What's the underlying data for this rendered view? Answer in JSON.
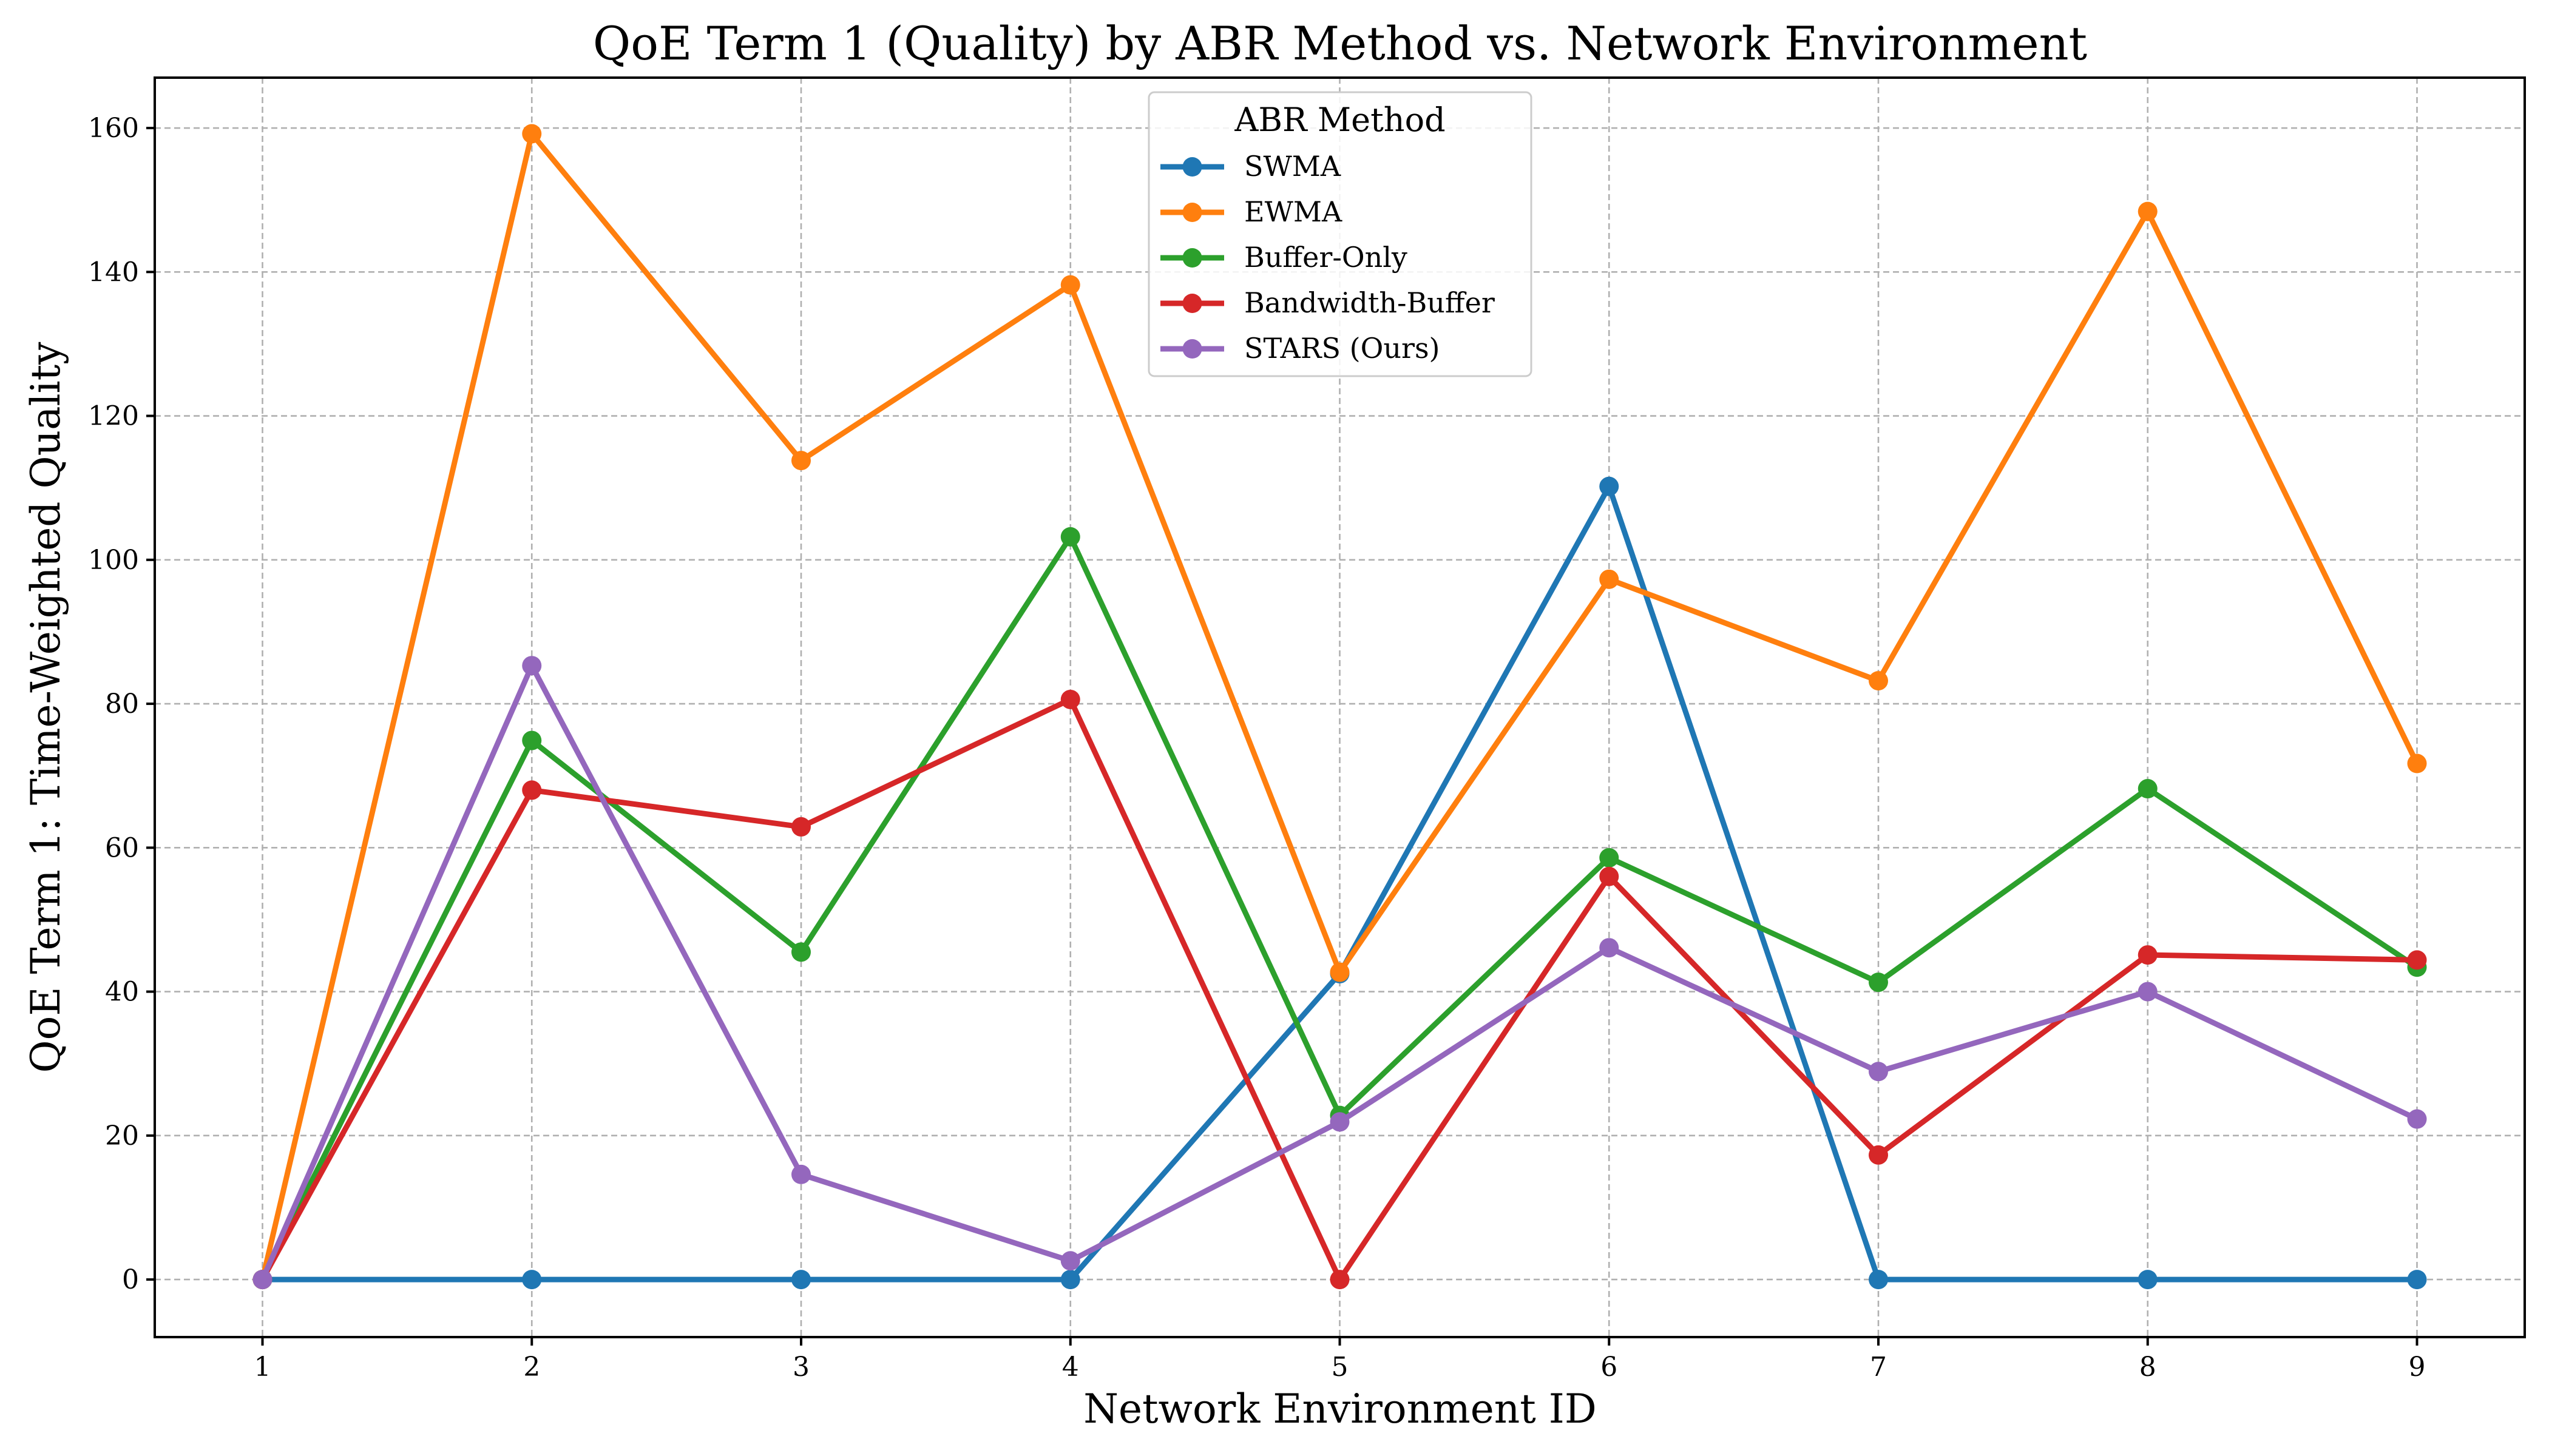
{
  "chart_data": {
    "type": "line",
    "title": "QoE Term 1 (Quality) by ABR Method vs. Network Environment",
    "xlabel": "Network Environment ID",
    "ylabel": "QoE Term 1: Time-Weighted Quality",
    "x": [
      1,
      2,
      3,
      4,
      5,
      6,
      7,
      8,
      9
    ],
    "x_ticks": [
      "1",
      "2",
      "3",
      "4",
      "5",
      "6",
      "7",
      "8",
      "9"
    ],
    "xlim": [
      0.6,
      9.4
    ],
    "ylim": [
      -8,
      167
    ],
    "y_ticks": [
      "0",
      "20",
      "40",
      "60",
      "80",
      "100",
      "120",
      "140",
      "160"
    ],
    "grid": true,
    "legend": {
      "title": "ABR Method",
      "placement": "top-center"
    },
    "series": [
      {
        "name": "SWMA",
        "color": "#1f77b4",
        "values": [
          0,
          0,
          0,
          0,
          42.5,
          110.2,
          0,
          0,
          0
        ]
      },
      {
        "name": "EWMA",
        "color": "#ff7f0e",
        "values": [
          0,
          159.2,
          113.8,
          138.2,
          42.7,
          97.3,
          83.2,
          148.4,
          71.7
        ]
      },
      {
        "name": "Buffer-Only",
        "color": "#2ca02c",
        "values": [
          0,
          74.9,
          45.5,
          103.2,
          22.8,
          58.6,
          41.3,
          68.2,
          43.4
        ]
      },
      {
        "name": "Bandwidth-Buffer",
        "color": "#d62728",
        "values": [
          0,
          68.0,
          62.9,
          80.6,
          0,
          56.0,
          17.3,
          45.1,
          44.4
        ]
      },
      {
        "name": "STARS (Ours)",
        "color": "#9467bd",
        "values": [
          0,
          85.3,
          14.6,
          2.6,
          21.9,
          46.1,
          28.9,
          40.0,
          22.3
        ]
      }
    ]
  }
}
